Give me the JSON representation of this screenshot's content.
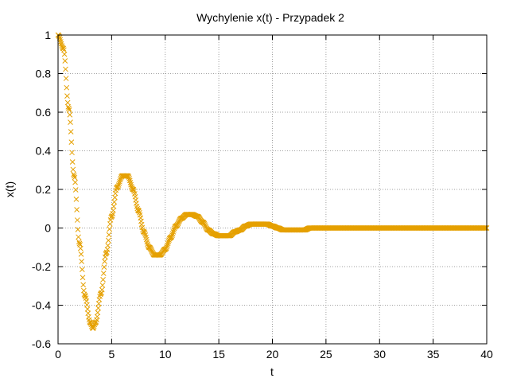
{
  "chart_data": {
    "type": "scatter",
    "title": "Wychylenie x(t) - Przypadek 2",
    "xlabel": "t",
    "ylabel": "x(t)",
    "xlim": [
      0,
      40
    ],
    "ylim": [
      -0.6,
      1
    ],
    "x_ticks": [
      "0",
      "5",
      "10",
      "15",
      "20",
      "25",
      "30",
      "35",
      "40"
    ],
    "y_ticks": [
      "1",
      "0.8",
      "0.6",
      "0.4",
      "0.2",
      "0",
      "-0.2",
      "-0.4",
      "-0.6"
    ],
    "grid": true,
    "legend": "none",
    "color": "#e5a000",
    "series": [
      {
        "x": [
          0,
          0.5,
          1,
          1.5,
          2,
          2.5,
          3,
          3.25,
          3.5,
          4,
          4.5,
          5,
          5.5,
          6,
          6.5,
          7,
          7.5,
          8,
          8.5,
          9,
          9.5,
          10,
          10.5,
          11,
          11.5,
          12,
          12.5,
          13,
          13.5,
          14,
          14.5,
          15,
          15.5,
          16,
          16.5,
          17,
          17.5,
          18,
          18.5,
          19,
          19.5,
          20,
          20.5,
          21,
          21.5,
          22,
          22.5,
          23,
          23.5,
          24,
          24.5,
          25,
          25.5,
          26,
          26.5,
          27,
          27.5,
          28,
          28.5,
          29,
          29.5,
          30,
          31,
          32,
          33,
          34,
          35,
          36,
          37,
          38,
          39,
          40
        ],
        "y": [
          1.0,
          0.93,
          0.62,
          0.27,
          -0.08,
          -0.35,
          -0.49,
          -0.52,
          -0.49,
          -0.34,
          -0.13,
          0.06,
          0.21,
          0.27,
          0.27,
          0.2,
          0.09,
          -0.02,
          -0.1,
          -0.14,
          -0.14,
          -0.11,
          -0.05,
          0.01,
          0.05,
          0.07,
          0.07,
          0.06,
          0.03,
          -0.01,
          -0.03,
          -0.04,
          -0.04,
          -0.04,
          -0.02,
          -0.01,
          0.01,
          0.02,
          0.02,
          0.02,
          0.02,
          0.01,
          0.0,
          -0.01,
          -0.01,
          -0.01,
          -0.01,
          -0.01,
          0.0,
          0.0,
          0.0,
          0.0,
          0.0,
          0.0,
          0.0,
          0.0,
          0.0,
          0.0,
          0.0,
          0.0,
          0.0,
          0.0,
          0.0,
          0.0,
          0.0,
          0.0,
          0.0,
          0.0,
          0.0,
          0.0,
          0.0,
          0.0
        ]
      }
    ]
  }
}
